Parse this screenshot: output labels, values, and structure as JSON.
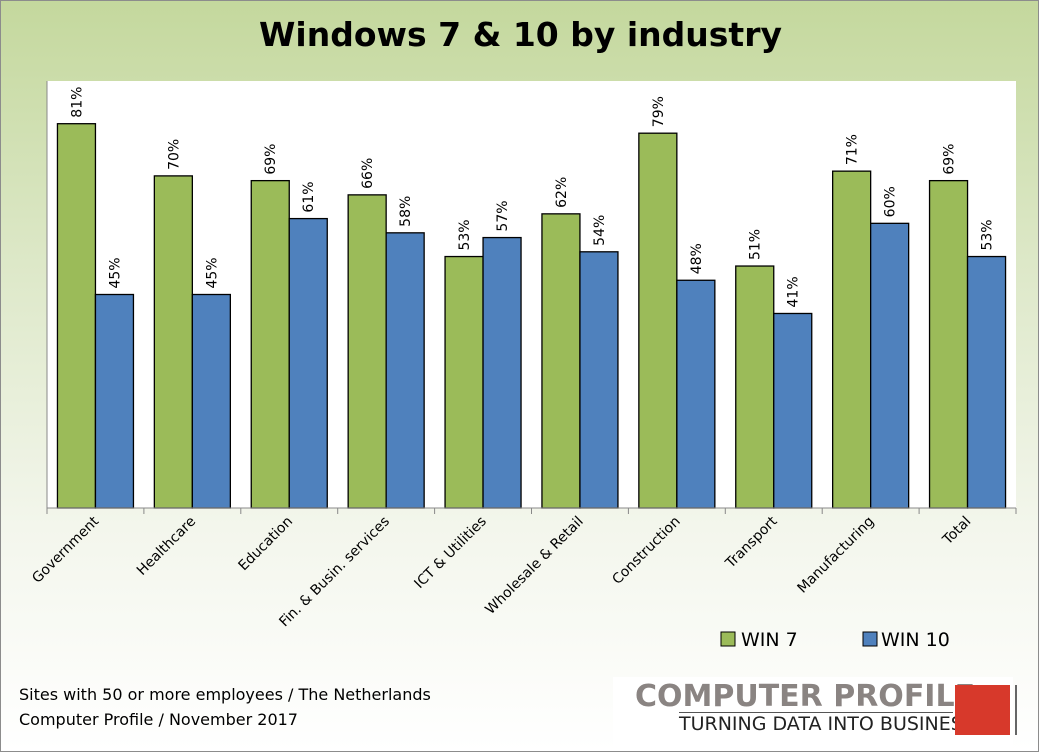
{
  "chart_data": {
    "type": "bar",
    "title": "Windows 7 & 10 by industry",
    "categories": [
      "Government",
      "Healthcare",
      "Education",
      "Fin. & Busin. services",
      "ICT & Utilities",
      "Wholesale & Retail",
      "Construction",
      "Transport",
      "Manufacturing",
      "Total"
    ],
    "series": [
      {
        "name": "WIN 7",
        "color": "#9bbb59",
        "values": [
          81,
          70,
          69,
          66,
          53,
          62,
          79,
          51,
          71,
          69
        ]
      },
      {
        "name": "WIN 10",
        "color": "#4f81bd",
        "values": [
          45,
          45,
          61,
          58,
          57,
          54,
          48,
          41,
          60,
          53
        ]
      }
    ],
    "value_suffix": "%",
    "ylim": [
      0,
      90
    ],
    "grid": false,
    "legend": "bottom-right",
    "xlabel": "",
    "ylabel": ""
  },
  "footer": {
    "line1": "Sites with 50 or more employees / The Netherlands",
    "line2": "Computer Profile / November 2017"
  },
  "logo": {
    "name": "COMPUTER PROFILE",
    "tagline": "TURNING DATA INTO BUSINESS",
    "color": "#d7392b"
  }
}
